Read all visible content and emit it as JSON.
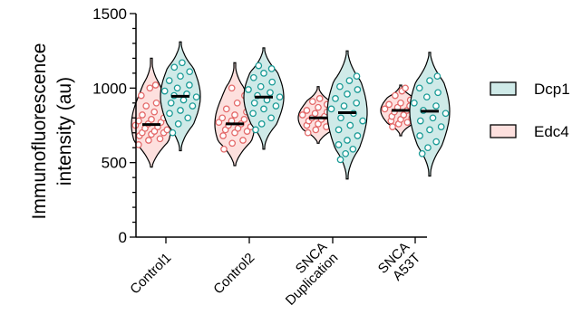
{
  "chart_data": {
    "type": "violin",
    "title": "",
    "ylabel_lines": [
      "Immunofluorescence",
      "intensity (au)"
    ],
    "xlabel": "",
    "ylim": [
      0,
      1500
    ],
    "yticks": [
      0,
      500,
      1000,
      1500
    ],
    "categories": [
      {
        "lines": [
          "Control1"
        ]
      },
      {
        "lines": [
          "Control2"
        ]
      },
      {
        "lines": [
          "SNCA",
          "Duplication"
        ]
      },
      {
        "lines": [
          "SNCA",
          "A53T"
        ]
      }
    ],
    "series": [
      {
        "name": "Edc4",
        "fill": "#fde0de",
        "point": "#e46a6a",
        "medians": [
          755,
          760,
          800,
          850
        ],
        "ranges": [
          [
            470,
            1200
          ],
          [
            480,
            1170
          ],
          [
            630,
            1010
          ],
          [
            680,
            1020
          ]
        ],
        "points": [
          [
            620,
            650,
            660,
            680,
            690,
            700,
            700,
            710,
            720,
            730,
            740,
            750,
            760,
            770,
            780,
            790,
            800,
            820,
            840,
            860,
            880,
            900,
            950,
            1000,
            1020
          ],
          [
            590,
            630,
            650,
            680,
            700,
            710,
            720,
            730,
            740,
            750,
            760,
            770,
            780,
            790,
            800,
            820,
            840,
            860,
            900,
            950,
            1000
          ],
          [
            700,
            720,
            740,
            750,
            760,
            770,
            780,
            790,
            800,
            800,
            810,
            820,
            830,
            840,
            850,
            870,
            890,
            910,
            930
          ],
          [
            740,
            760,
            770,
            780,
            790,
            800,
            810,
            820,
            830,
            840,
            850,
            860,
            870,
            880,
            890,
            900,
            920,
            950,
            980,
            1000
          ]
        ]
      },
      {
        "name": "Dcp1",
        "fill": "#cfeae8",
        "point": "#1a9b96",
        "medians": [
          945,
          940,
          835,
          845
        ],
        "ranges": [
          [
            580,
            1310
          ],
          [
            590,
            1270
          ],
          [
            390,
            1250
          ],
          [
            410,
            1240
          ]
        ],
        "points": [
          [
            700,
            760,
            800,
            830,
            850,
            880,
            900,
            920,
            940,
            950,
            960,
            980,
            1000,
            1020,
            1050,
            1080,
            1110,
            1140,
            1170
          ],
          [
            720,
            760,
            800,
            830,
            860,
            880,
            900,
            920,
            940,
            950,
            970,
            990,
            1010,
            1040,
            1070,
            1100,
            1130,
            1150
          ],
          [
            520,
            560,
            590,
            620,
            650,
            680,
            720,
            750,
            780,
            800,
            830,
            860,
            880,
            900,
            930,
            960,
            990,
            1010,
            1050,
            1080
          ],
          [
            560,
            600,
            640,
            680,
            720,
            740,
            780,
            800,
            830,
            850,
            880,
            900,
            940,
            970,
            1000,
            1050,
            1080
          ]
        ]
      }
    ],
    "legend": {
      "placement": "right",
      "entries": [
        "Dcp1",
        "Edc4"
      ]
    }
  }
}
